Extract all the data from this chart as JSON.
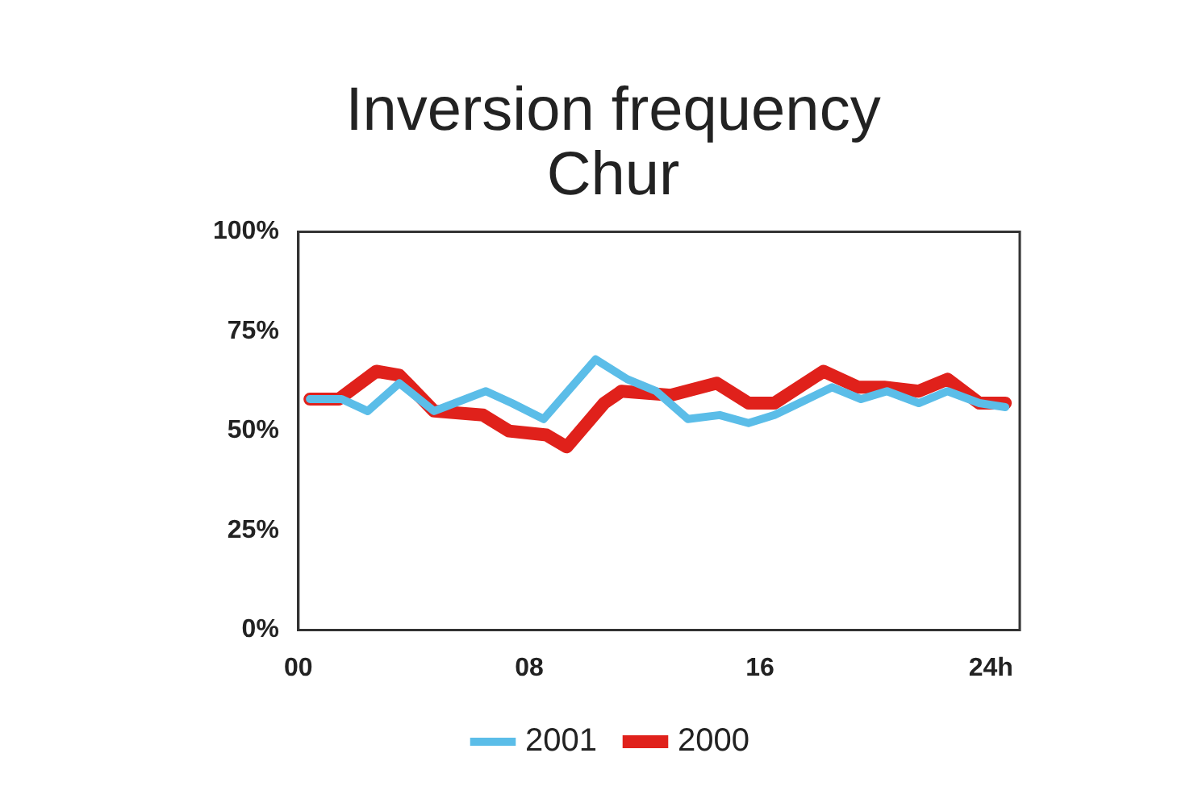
{
  "chart_data": {
    "type": "line",
    "title": [
      "Inversion frequency",
      "Chur"
    ],
    "xlim": [
      0,
      25
    ],
    "xticks": [
      {
        "value": 0,
        "label": "00"
      },
      {
        "value": 8,
        "label": "08"
      },
      {
        "value": 16,
        "label": "16"
      },
      {
        "value": 24,
        "label": "24h"
      }
    ],
    "ylim": [
      0,
      100
    ],
    "yticks": [
      {
        "value": 0,
        "label": "0%"
      },
      {
        "value": 25,
        "label": "25%"
      },
      {
        "value": 50,
        "label": "50%"
      },
      {
        "value": 75,
        "label": "75%"
      },
      {
        "value": 100,
        "label": "100%"
      }
    ],
    "grid": false,
    "legend": "bottom",
    "marker": "none",
    "line_style": "solid",
    "series": [
      {
        "name": "2001",
        "color": "#5bbde8",
        "x": [
          0.4,
          1.5,
          2.4,
          3.5,
          4.7,
          6.5,
          7.4,
          8.5,
          10.3,
          11.4,
          12.4,
          13.5,
          14.6,
          15.6,
          16.5,
          18.5,
          19.5,
          20.4,
          21.5,
          22.5,
          23.6,
          24.5
        ],
        "values": [
          58,
          58,
          55,
          62,
          55,
          60,
          57,
          53,
          68,
          63,
          60,
          53,
          54,
          52,
          54,
          61,
          58,
          60,
          57,
          60,
          57,
          56
        ]
      },
      {
        "name": "2000",
        "color": "#e0211b",
        "x": [
          0.4,
          1.4,
          2.7,
          3.5,
          4.7,
          6.4,
          7.3,
          8.6,
          9.3,
          10.6,
          11.2,
          12.9,
          14.5,
          15.6,
          16.5,
          18.2,
          19.4,
          20.3,
          21.5,
          22.5,
          23.6,
          24.5
        ],
        "values": [
          58,
          58,
          65,
          64,
          55,
          54,
          50,
          49,
          46,
          57,
          60,
          59,
          62,
          57,
          57,
          65,
          61,
          61,
          60,
          63,
          57,
          57
        ]
      }
    ]
  }
}
